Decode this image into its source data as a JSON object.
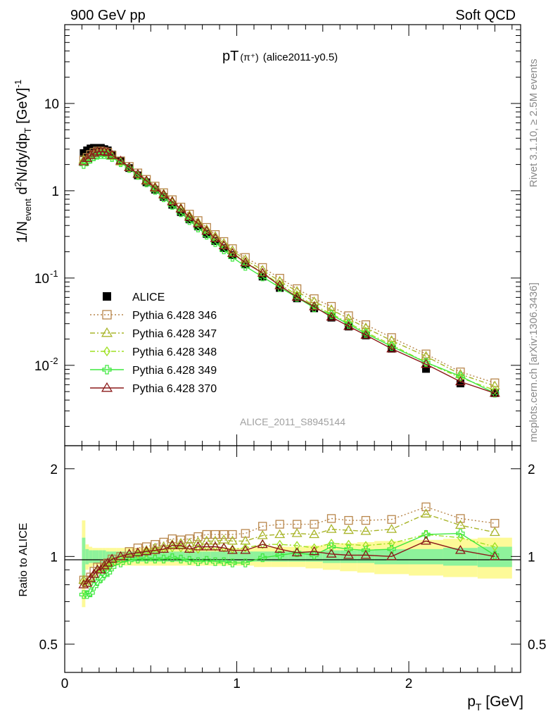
{
  "header": {
    "left": "900 GeV pp",
    "right": "Soft QCD"
  },
  "side_labels": {
    "top": "Rivet 3.1.10, ≥ 2.5M events",
    "bottom": "mcplots.cern.ch [arXiv:1306.3436]"
  },
  "chart_data": [
    {
      "type": "scatter",
      "panel": "main",
      "title": "pT",
      "title_sub": "(π⁺)",
      "title_note": "(alice2011-y0.5)",
      "watermark": "ALICE_2011_S8945144",
      "xlabel": "p_T [GeV]",
      "ylabel": "1/N_event d²N/dy/dp_T [GeV]⁻¹",
      "xlim": [
        0,
        2.65
      ],
      "ylim": [
        0.0012,
        80
      ],
      "yscale": "log",
      "x_ticks": [
        "0",
        "1",
        "2"
      ],
      "y_ticks": [
        "10^-2",
        "10^-1",
        "1",
        "10"
      ],
      "x": [
        0.11,
        0.13,
        0.15,
        0.17,
        0.19,
        0.21,
        0.23,
        0.25,
        0.275,
        0.325,
        0.375,
        0.425,
        0.475,
        0.525,
        0.575,
        0.625,
        0.675,
        0.725,
        0.775,
        0.825,
        0.875,
        0.925,
        0.975,
        1.05,
        1.15,
        1.25,
        1.35,
        1.45,
        1.55,
        1.65,
        1.75,
        1.9,
        2.1,
        2.3,
        2.5
      ],
      "series": [
        {
          "name": "ALICE",
          "color": "#000000",
          "marker": "filled-square",
          "line": "none",
          "values": [
            2.7,
            2.9,
            3.05,
            3.1,
            3.1,
            3.1,
            3.0,
            2.9,
            2.6,
            2.2,
            1.82,
            1.5,
            1.25,
            1.03,
            0.85,
            0.69,
            0.57,
            0.47,
            0.39,
            0.32,
            0.265,
            0.22,
            0.183,
            0.143,
            0.104,
            0.077,
            0.0585,
            0.045,
            0.0352,
            0.0278,
            0.022,
            0.0155,
            0.0091,
            0.0062,
            0.0048
          ]
        },
        {
          "name": "Pythia 6.428 346",
          "color": "#b8864b",
          "marker": "open-square",
          "line": "dotted",
          "values": [
            2.25,
            2.4,
            2.6,
            2.75,
            2.85,
            2.85,
            2.8,
            2.75,
            2.55,
            2.2,
            1.9,
            1.6,
            1.35,
            1.13,
            0.95,
            0.79,
            0.65,
            0.54,
            0.455,
            0.38,
            0.315,
            0.262,
            0.217,
            0.172,
            0.132,
            0.0995,
            0.0755,
            0.058,
            0.0474,
            0.037,
            0.0292,
            0.0208,
            0.0135,
            0.0084,
            0.0063
          ]
        },
        {
          "name": "Pythia 6.428 347",
          "color": "#a9b52a",
          "marker": "open-triangle",
          "line": "dashdot",
          "values": [
            2.25,
            2.35,
            2.55,
            2.7,
            2.8,
            2.8,
            2.75,
            2.7,
            2.5,
            2.15,
            1.85,
            1.55,
            1.31,
            1.1,
            0.92,
            0.76,
            0.63,
            0.52,
            0.435,
            0.36,
            0.3,
            0.25,
            0.206,
            0.162,
            0.123,
            0.092,
            0.0705,
            0.0535,
            0.0435,
            0.0342,
            0.0269,
            0.0192,
            0.0127,
            0.0079,
            0.0058
          ]
        },
        {
          "name": "Pythia 6.428 348",
          "color": "#9ee021",
          "marker": "open-diamond",
          "line": "dashdot",
          "values": [
            2.2,
            2.35,
            2.55,
            2.7,
            2.8,
            2.8,
            2.75,
            2.7,
            2.5,
            2.15,
            1.82,
            1.52,
            1.28,
            1.07,
            0.9,
            0.74,
            0.61,
            0.5,
            0.415,
            0.345,
            0.285,
            0.236,
            0.194,
            0.153,
            0.115,
            0.085,
            0.064,
            0.0482,
            0.039,
            0.0306,
            0.024,
            0.0172,
            0.0108,
            0.0072,
            0.0052
          ]
        },
        {
          "name": "Pythia 6.428 349",
          "color": "#3ee83e",
          "marker": "open-cross",
          "line": "solid",
          "values": [
            2.0,
            2.15,
            2.3,
            2.45,
            2.55,
            2.6,
            2.6,
            2.55,
            2.4,
            2.1,
            1.8,
            1.5,
            1.23,
            1.01,
            0.83,
            0.68,
            0.56,
            0.455,
            0.375,
            0.31,
            0.255,
            0.21,
            0.173,
            0.136,
            0.103,
            0.078,
            0.06,
            0.0455,
            0.038,
            0.0295,
            0.0232,
            0.0165,
            0.0108,
            0.0075,
            0.0048
          ]
        },
        {
          "name": "Pythia 6.428 370",
          "color": "#8b1a1a",
          "marker": "open-triangle",
          "line": "solid",
          "values": [
            2.15,
            2.35,
            2.55,
            2.7,
            2.8,
            2.8,
            2.8,
            2.75,
            2.55,
            2.2,
            1.85,
            1.55,
            1.3,
            1.08,
            0.9,
            0.75,
            0.62,
            0.5,
            0.42,
            0.345,
            0.285,
            0.235,
            0.192,
            0.15,
            0.114,
            0.082,
            0.0605,
            0.047,
            0.0358,
            0.028,
            0.0222,
            0.0155,
            0.0103,
            0.0065,
            0.0048
          ]
        }
      ]
    },
    {
      "type": "scatter",
      "panel": "ratio",
      "xlabel": "p_T [GeV]",
      "ylabel": "Ratio to ALICE",
      "xlim": [
        0,
        2.65
      ],
      "ylim": [
        0.4,
        2.4
      ],
      "yscale": "log",
      "y_ticks": [
        "0.5",
        "1",
        "2"
      ],
      "x": [
        0.11,
        0.13,
        0.15,
        0.17,
        0.19,
        0.21,
        0.23,
        0.25,
        0.275,
        0.325,
        0.375,
        0.425,
        0.475,
        0.525,
        0.575,
        0.625,
        0.675,
        0.725,
        0.775,
        0.825,
        0.875,
        0.925,
        0.975,
        1.05,
        1.15,
        1.25,
        1.35,
        1.45,
        1.55,
        1.65,
        1.75,
        1.9,
        2.1,
        2.3,
        2.5
      ],
      "bin_edges": [
        0.1,
        0.12,
        0.14,
        0.16,
        0.18,
        0.2,
        0.22,
        0.24,
        0.26,
        0.3,
        0.35,
        0.4,
        0.45,
        0.5,
        0.55,
        0.6,
        0.65,
        0.7,
        0.75,
        0.8,
        0.85,
        0.9,
        0.95,
        1.0,
        1.1,
        1.2,
        1.3,
        1.4,
        1.5,
        1.6,
        1.7,
        1.8,
        2.0,
        2.2,
        2.4,
        2.6
      ],
      "band_stat": [
        0.16,
        0.06,
        0.05,
        0.05,
        0.05,
        0.05,
        0.05,
        0.04,
        0.04,
        0.04,
        0.04,
        0.04,
        0.04,
        0.04,
        0.04,
        0.04,
        0.04,
        0.04,
        0.04,
        0.04,
        0.04,
        0.04,
        0.04,
        0.04,
        0.04,
        0.04,
        0.04,
        0.04,
        0.05,
        0.05,
        0.05,
        0.06,
        0.06,
        0.07,
        0.08
      ],
      "band_total": [
        0.33,
        0.1,
        0.08,
        0.07,
        0.07,
        0.07,
        0.07,
        0.07,
        0.07,
        0.07,
        0.07,
        0.07,
        0.07,
        0.07,
        0.07,
        0.07,
        0.07,
        0.07,
        0.07,
        0.07,
        0.07,
        0.07,
        0.07,
        0.07,
        0.08,
        0.08,
        0.08,
        0.09,
        0.1,
        0.11,
        0.12,
        0.13,
        0.14,
        0.15,
        0.16
      ],
      "series": [
        {
          "name": "Pythia 6.428 346",
          "color": "#b8864b",
          "marker": "open-square",
          "line": "dotted",
          "values": [
            0.83,
            0.83,
            0.85,
            0.89,
            0.92,
            0.92,
            0.94,
            0.95,
            0.98,
            1.0,
            1.04,
            1.07,
            1.08,
            1.1,
            1.12,
            1.15,
            1.14,
            1.15,
            1.17,
            1.19,
            1.19,
            1.19,
            1.19,
            1.2,
            1.27,
            1.29,
            1.29,
            1.29,
            1.35,
            1.33,
            1.33,
            1.34,
            1.48,
            1.35,
            1.3
          ]
        },
        {
          "name": "Pythia 6.428 347",
          "color": "#a9b52a",
          "marker": "open-triangle",
          "line": "dashdot",
          "values": [
            0.83,
            0.81,
            0.84,
            0.87,
            0.9,
            0.9,
            0.92,
            0.93,
            0.96,
            0.98,
            1.02,
            1.03,
            1.05,
            1.07,
            1.08,
            1.1,
            1.11,
            1.11,
            1.12,
            1.13,
            1.13,
            1.14,
            1.13,
            1.13,
            1.18,
            1.19,
            1.2,
            1.19,
            1.24,
            1.23,
            1.22,
            1.24,
            1.4,
            1.28,
            1.21
          ]
        },
        {
          "name": "Pythia 6.428 348",
          "color": "#9ee021",
          "marker": "open-diamond",
          "line": "dashdot",
          "values": [
            0.81,
            0.81,
            0.84,
            0.87,
            0.9,
            0.9,
            0.92,
            0.93,
            0.96,
            0.98,
            1.0,
            1.02,
            1.03,
            1.04,
            1.06,
            1.07,
            1.07,
            1.06,
            1.06,
            1.08,
            1.08,
            1.07,
            1.06,
            1.07,
            1.1,
            1.1,
            1.09,
            1.07,
            1.11,
            1.1,
            1.09,
            1.11,
            1.19,
            1.16,
            1.08
          ]
        },
        {
          "name": "Pythia 6.428 349",
          "color": "#3ee83e",
          "marker": "open-cross",
          "line": "solid",
          "values": [
            0.74,
            0.74,
            0.75,
            0.79,
            0.82,
            0.84,
            0.87,
            0.88,
            0.92,
            0.95,
            0.97,
            0.98,
            0.98,
            0.98,
            0.98,
            0.99,
            0.98,
            0.97,
            0.96,
            0.97,
            0.96,
            0.96,
            0.95,
            0.95,
            0.99,
            1.01,
            1.03,
            1.01,
            1.08,
            1.06,
            1.05,
            1.06,
            1.19,
            1.2,
            1.01
          ]
        },
        {
          "name": "Pythia 6.428 370",
          "color": "#8b1a1a",
          "marker": "open-triangle",
          "line": "solid",
          "values": [
            0.8,
            0.81,
            0.84,
            0.87,
            0.9,
            0.9,
            0.93,
            0.95,
            0.98,
            1.0,
            1.02,
            1.03,
            1.04,
            1.05,
            1.06,
            1.09,
            1.09,
            1.06,
            1.08,
            1.08,
            1.08,
            1.07,
            1.05,
            1.05,
            1.1,
            1.06,
            1.03,
            1.04,
            1.02,
            1.01,
            1.01,
            1.0,
            1.13,
            1.05,
            1.0
          ]
        }
      ]
    }
  ]
}
